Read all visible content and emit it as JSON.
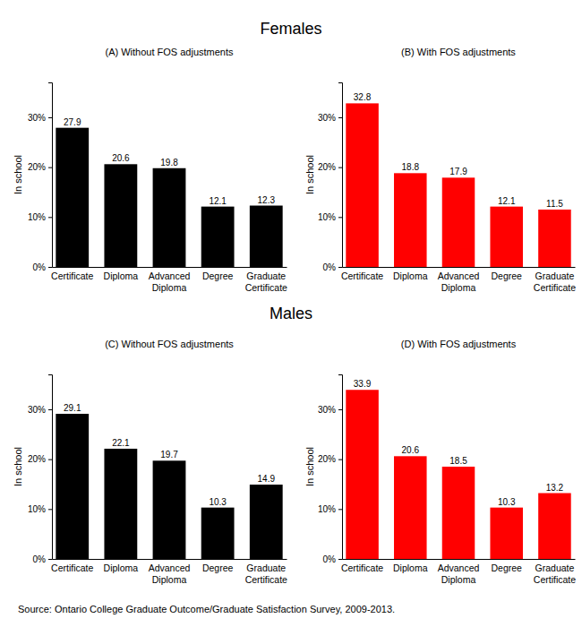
{
  "chart_data": [
    {
      "type": "bar",
      "title": "(A) Without FOS adjustments",
      "y_label": "In school",
      "categories": [
        "Certificate",
        "Diploma",
        "Advanced Diploma",
        "Degree",
        "Graduate Certificate"
      ],
      "values": [
        27.9,
        20.6,
        19.8,
        12.1,
        12.3
      ],
      "color": "#000000",
      "ylim": [
        0,
        37
      ],
      "yticks": [
        {
          "value": 0,
          "label": "0%"
        },
        {
          "value": 10,
          "label": "10%"
        },
        {
          "value": 20,
          "label": "20%"
        },
        {
          "value": 30,
          "label": "30%"
        }
      ],
      "grid": false,
      "data_labels": true
    },
    {
      "type": "bar",
      "title": "(B) With FOS adjustments",
      "y_label": "In school",
      "categories": [
        "Certificate",
        "Diploma",
        "Advanced Diploma",
        "Degree",
        "Graduate Certificate"
      ],
      "values": [
        32.8,
        18.8,
        17.9,
        12.1,
        11.5
      ],
      "color": "#ff0000",
      "ylim": [
        0,
        37
      ],
      "yticks": [
        {
          "value": 0,
          "label": "0%"
        },
        {
          "value": 10,
          "label": "10%"
        },
        {
          "value": 20,
          "label": "20%"
        },
        {
          "value": 30,
          "label": "30%"
        }
      ],
      "grid": false,
      "data_labels": true
    },
    {
      "type": "bar",
      "title": "(C) Without FOS adjustments",
      "y_label": "In school",
      "categories": [
        "Certificate",
        "Diploma",
        "Advanced Diploma",
        "Degree",
        "Graduate Certificate"
      ],
      "values": [
        29.1,
        22.1,
        19.7,
        10.3,
        14.9
      ],
      "color": "#000000",
      "ylim": [
        0,
        37
      ],
      "yticks": [
        {
          "value": 0,
          "label": "0%"
        },
        {
          "value": 10,
          "label": "10%"
        },
        {
          "value": 20,
          "label": "20%"
        },
        {
          "value": 30,
          "label": "30%"
        }
      ],
      "grid": false,
      "data_labels": true
    },
    {
      "type": "bar",
      "title": "(D) With FOS adjustments",
      "y_label": "In school",
      "categories": [
        "Certificate",
        "Diploma",
        "Advanced Diploma",
        "Degree",
        "Graduate Certificate"
      ],
      "values": [
        33.9,
        20.6,
        18.5,
        10.3,
        13.2
      ],
      "color": "#ff0000",
      "ylim": [
        0,
        37
      ],
      "yticks": [
        {
          "value": 0,
          "label": "0%"
        },
        {
          "value": 10,
          "label": "10%"
        },
        {
          "value": 20,
          "label": "20%"
        },
        {
          "value": 30,
          "label": "30%"
        }
      ],
      "grid": false,
      "data_labels": true
    }
  ],
  "headings": [
    "Females",
    "Males"
  ],
  "source": "Source: Ontario College Graduate Outcome/Graduate Satisfaction Survey, 2009-2013."
}
